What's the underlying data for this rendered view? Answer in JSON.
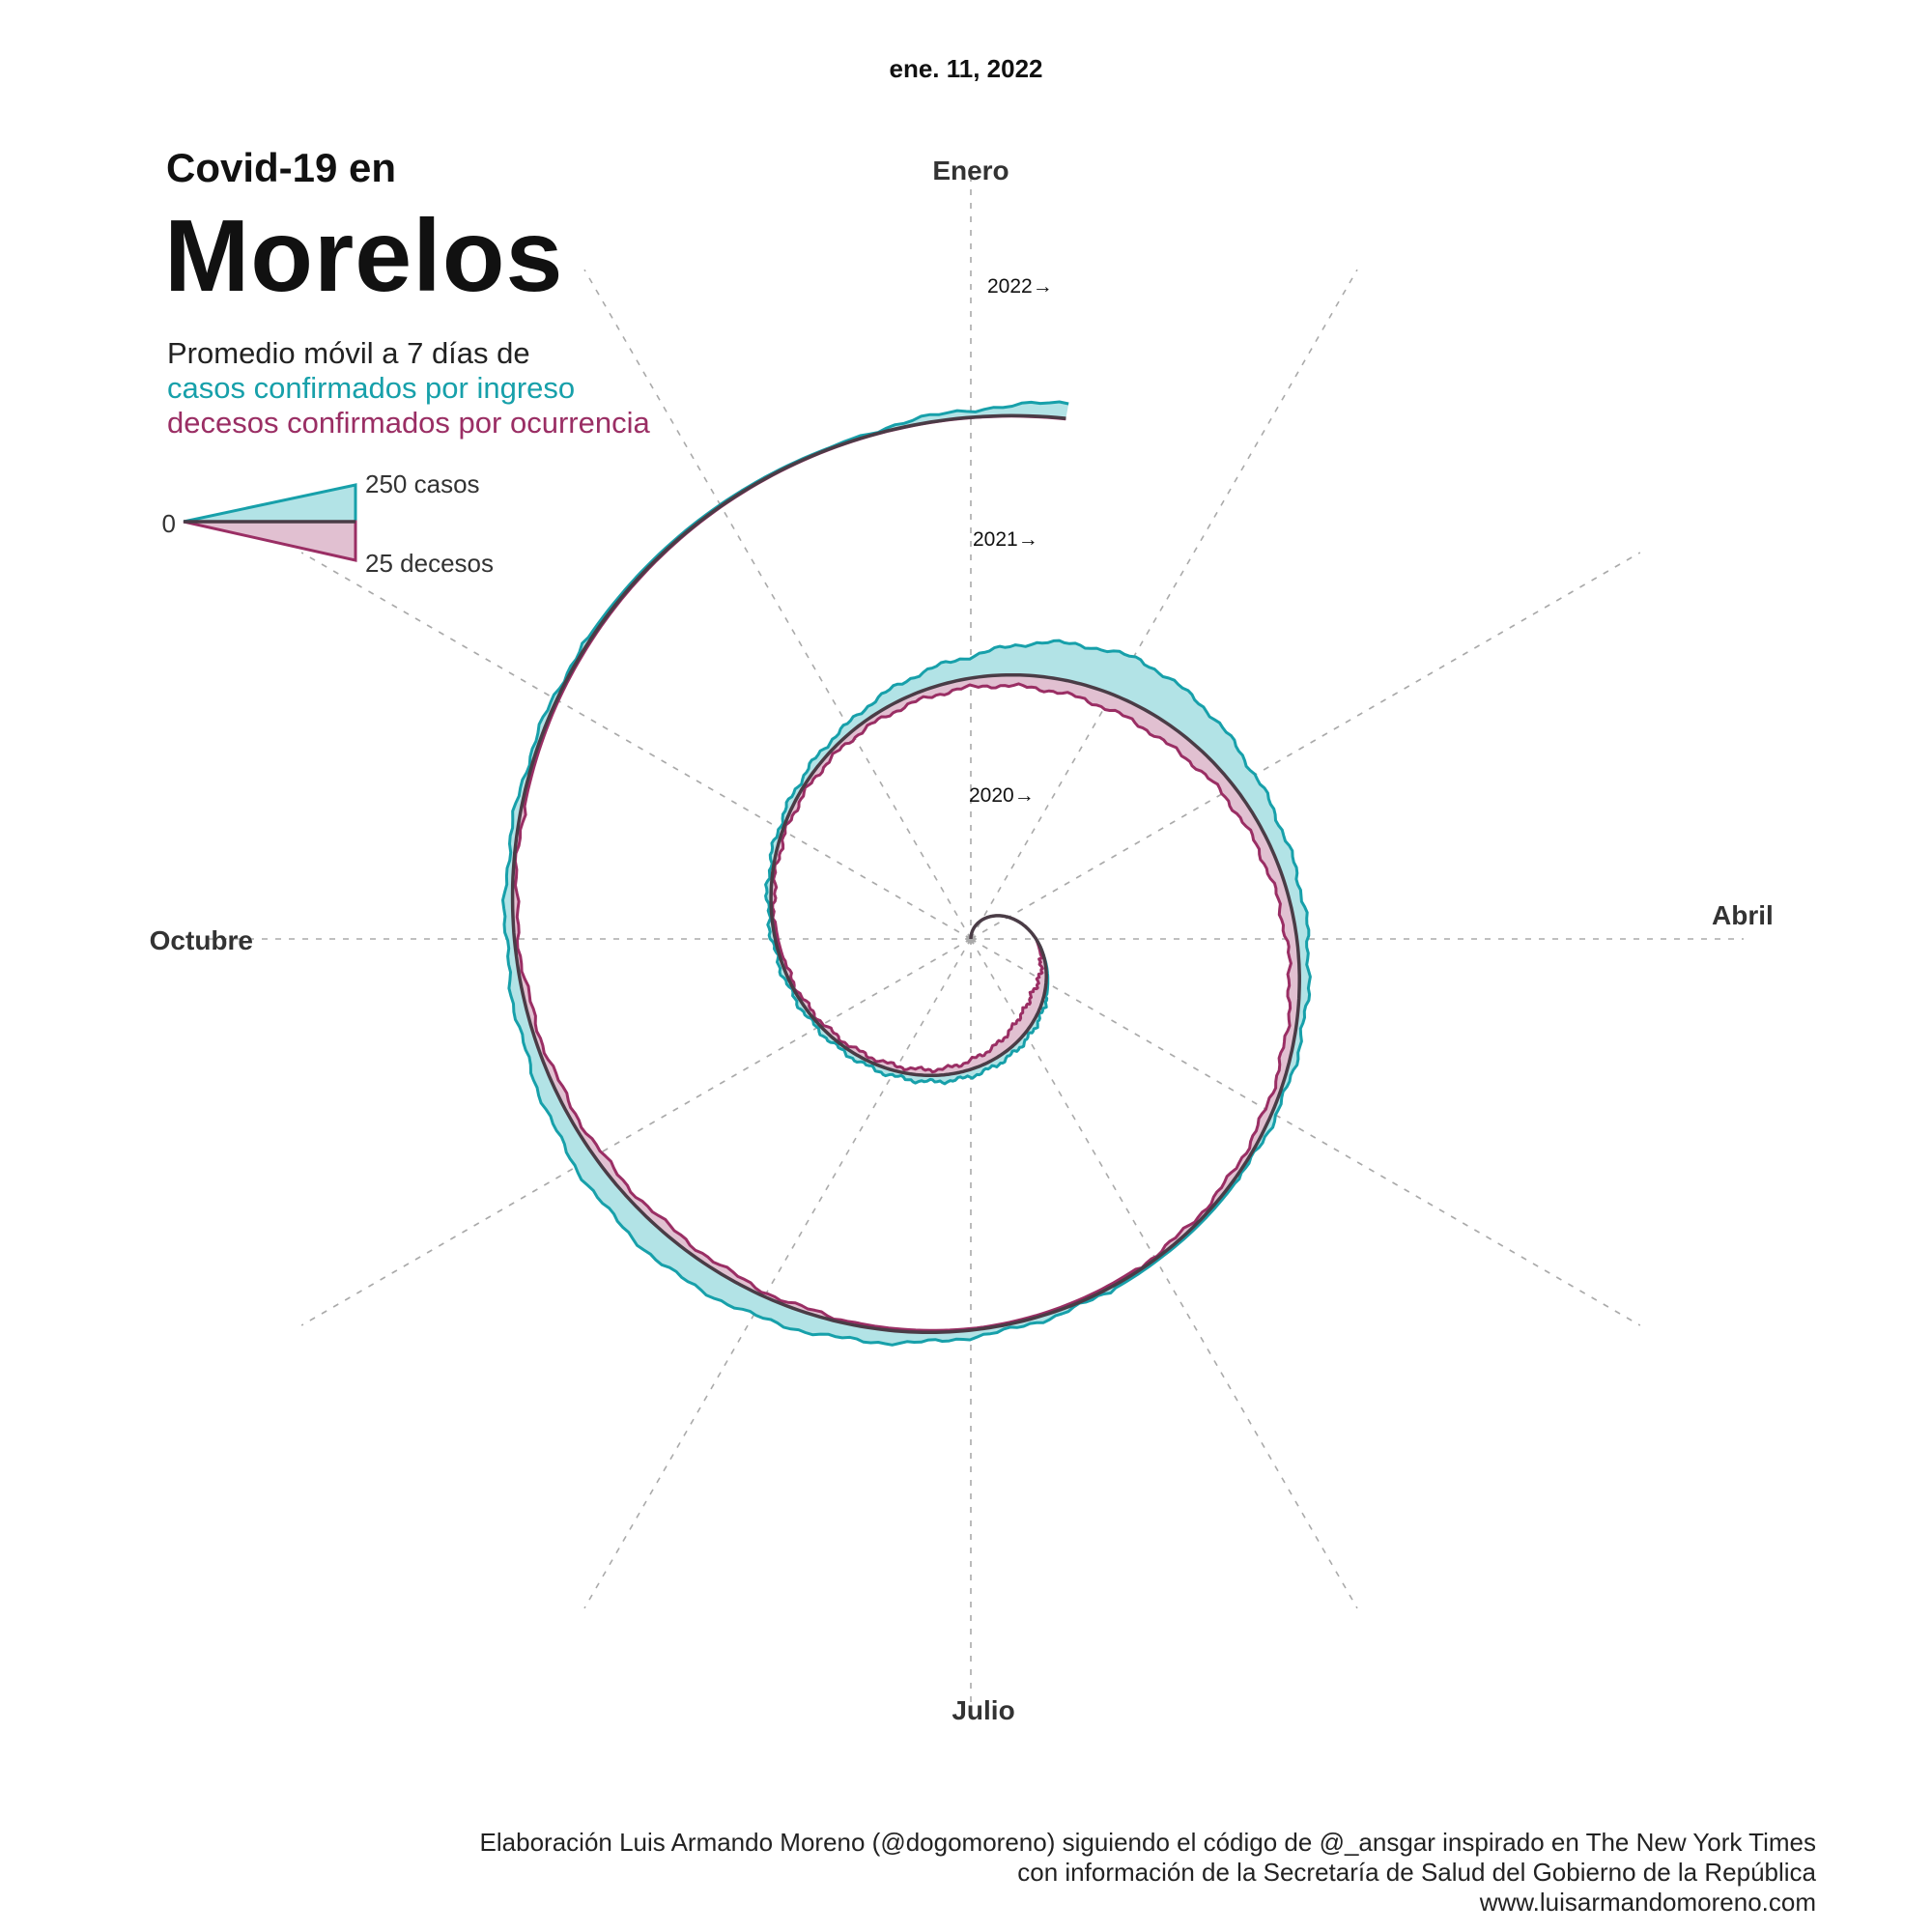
{
  "header": {
    "date": "ene. 11, 2022",
    "title_line1": "Covid-19 en",
    "title_line2": "Morelos",
    "subtitle_line1": "Promedio móvil a 7 días de",
    "subtitle_cases": "casos confirmados por ingreso",
    "subtitle_deaths": "decesos confirmados por ocurrencia"
  },
  "legend": {
    "zero": "0",
    "cases_label": "250 casos",
    "deaths_label": "25 decesos"
  },
  "credits": {
    "line1": "Elaboración Luis Armando Moreno (@dogomoreno) siguiendo el código de @_ansgar inspirado en The New York Times",
    "line2": "con información de la Secretaría de Salud del Gobierno de la República",
    "line3": "www.luisarmandomoreno.com"
  },
  "colors": {
    "cases": "#17a0aa",
    "cases_fill": "#b2e3e6",
    "deaths": "#9a2e64",
    "deaths_fill": "#e1c0d1",
    "baseline": "#4a3c46",
    "grid": "#aaaaaa"
  },
  "chart_data": {
    "type": "area",
    "layout": "spiral",
    "start_date": "2020-01-01",
    "end_date": "2022-01-11",
    "month_labels": [
      "Enero",
      "Abril",
      "Julio",
      "Octubre"
    ],
    "year_labels": [
      "2020→",
      "2021→",
      "2022→"
    ],
    "legend_scale": {
      "cases": 250,
      "deaths": 25
    },
    "series": [
      {
        "name": "casos confirmados por ingreso",
        "unit": "casos",
        "points": [
          [
            "2020-01-01",
            0
          ],
          [
            "2020-04-01",
            0
          ],
          [
            "2020-04-15",
            2
          ],
          [
            "2020-05-01",
            10
          ],
          [
            "2020-05-15",
            20
          ],
          [
            "2020-06-01",
            30
          ],
          [
            "2020-06-15",
            35
          ],
          [
            "2020-07-01",
            38
          ],
          [
            "2020-07-15",
            36
          ],
          [
            "2020-08-01",
            30
          ],
          [
            "2020-08-15",
            26
          ],
          [
            "2020-09-01",
            22
          ],
          [
            "2020-09-15",
            20
          ],
          [
            "2020-10-01",
            18
          ],
          [
            "2020-10-15",
            20
          ],
          [
            "2020-11-01",
            24
          ],
          [
            "2020-11-15",
            32
          ],
          [
            "2020-12-01",
            45
          ],
          [
            "2020-12-15",
            80
          ],
          [
            "2021-01-01",
            120
          ],
          [
            "2021-01-15",
            190
          ],
          [
            "2021-02-01",
            230
          ],
          [
            "2021-02-15",
            190
          ],
          [
            "2021-03-01",
            130
          ],
          [
            "2021-03-15",
            90
          ],
          [
            "2021-04-01",
            60
          ],
          [
            "2021-04-15",
            40
          ],
          [
            "2021-05-01",
            25
          ],
          [
            "2021-05-15",
            15
          ],
          [
            "2021-06-01",
            12
          ],
          [
            "2021-06-15",
            18
          ],
          [
            "2021-07-01",
            35
          ],
          [
            "2021-07-15",
            70
          ],
          [
            "2021-08-01",
            115
          ],
          [
            "2021-08-15",
            140
          ],
          [
            "2021-09-01",
            115
          ],
          [
            "2021-09-15",
            75
          ],
          [
            "2021-10-01",
            45
          ],
          [
            "2021-10-15",
            30
          ],
          [
            "2021-11-01",
            20
          ],
          [
            "2021-11-15",
            12
          ],
          [
            "2021-12-01",
            8
          ],
          [
            "2021-12-15",
            6
          ],
          [
            "2022-01-01",
            40
          ],
          [
            "2022-01-11",
            80
          ]
        ]
      },
      {
        "name": "decesos confirmados por ocurrencia",
        "unit": "decesos",
        "points": [
          [
            "2020-01-01",
            0
          ],
          [
            "2020-04-01",
            0
          ],
          [
            "2020-04-15",
            2
          ],
          [
            "2020-05-01",
            5
          ],
          [
            "2020-05-15",
            9
          ],
          [
            "2020-06-01",
            10
          ],
          [
            "2020-06-15",
            8
          ],
          [
            "2020-07-01",
            6
          ],
          [
            "2020-07-15",
            4
          ],
          [
            "2020-08-01",
            3.5
          ],
          [
            "2020-08-15",
            3
          ],
          [
            "2020-09-01",
            2.5
          ],
          [
            "2020-09-15",
            2
          ],
          [
            "2020-10-01",
            1.8
          ],
          [
            "2020-10-15",
            2
          ],
          [
            "2020-11-01",
            2.3
          ],
          [
            "2020-11-15",
            3
          ],
          [
            "2020-12-01",
            4
          ],
          [
            "2020-12-15",
            5
          ],
          [
            "2021-01-01",
            6
          ],
          [
            "2021-01-15",
            8
          ],
          [
            "2021-02-01",
            10
          ],
          [
            "2021-02-15",
            11
          ],
          [
            "2021-03-01",
            9
          ],
          [
            "2021-03-15",
            8
          ],
          [
            "2021-04-01",
            7
          ],
          [
            "2021-04-15",
            6
          ],
          [
            "2021-05-01",
            5
          ],
          [
            "2021-05-15",
            3.5
          ],
          [
            "2021-06-01",
            2
          ],
          [
            "2021-06-15",
            1.5
          ],
          [
            "2021-07-01",
            1
          ],
          [
            "2021-07-15",
            1.5
          ],
          [
            "2021-08-01",
            3
          ],
          [
            "2021-08-15",
            5.5
          ],
          [
            "2021-09-01",
            5
          ],
          [
            "2021-09-15",
            4
          ],
          [
            "2021-10-01",
            2.8
          ],
          [
            "2021-10-15",
            2
          ],
          [
            "2021-11-01",
            1.2
          ],
          [
            "2021-11-15",
            0.8
          ],
          [
            "2021-12-01",
            0.5
          ],
          [
            "2021-12-15",
            0.3
          ],
          [
            "2022-01-01",
            0.3
          ],
          [
            "2022-01-11",
            0.4
          ]
        ]
      }
    ]
  }
}
